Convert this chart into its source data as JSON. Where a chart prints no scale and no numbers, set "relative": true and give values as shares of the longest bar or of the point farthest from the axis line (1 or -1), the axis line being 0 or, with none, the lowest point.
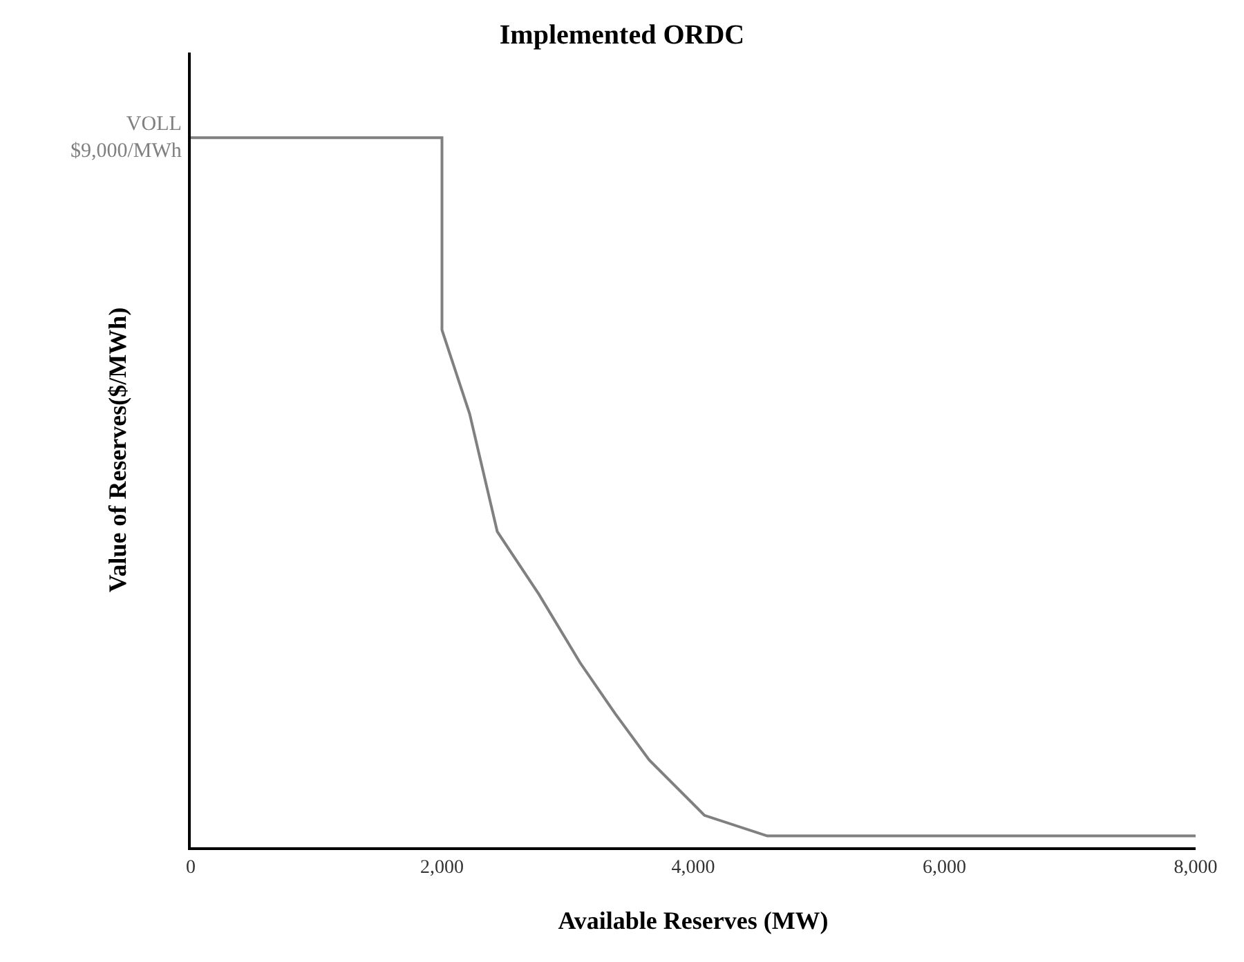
{
  "chart_data": {
    "type": "line",
    "title": "Implemented ORDC",
    "xlabel": "Available Reserves (MW)",
    "ylabel": "Value of Reserves($/MWh)",
    "relative": true,
    "x": [
      0,
      2000,
      2000,
      2220,
      2440,
      2770,
      3100,
      3380,
      3650,
      4090,
      4590,
      8000
    ],
    "series": [
      {
        "color": "#808080",
        "values": [
          1,
          1,
          0.729,
          0.611,
          0.445,
          0.357,
          0.26,
          0.188,
          0.123,
          0.045,
          0.016,
          0.016
        ]
      }
    ],
    "xlim": [
      0,
      8000
    ],
    "xticks": [
      0,
      {
        "value": 2000,
        "label": "2,000"
      },
      {
        "value": 4000,
        "label": "4,000"
      },
      {
        "value": 6000,
        "label": "6,000"
      },
      {
        "value": 8000,
        "label": "8,000"
      }
    ],
    "legend": false,
    "marker": "none",
    "line_style": "solid",
    "annotations": [
      "VOLL\n$9,000/MWh"
    ]
  }
}
